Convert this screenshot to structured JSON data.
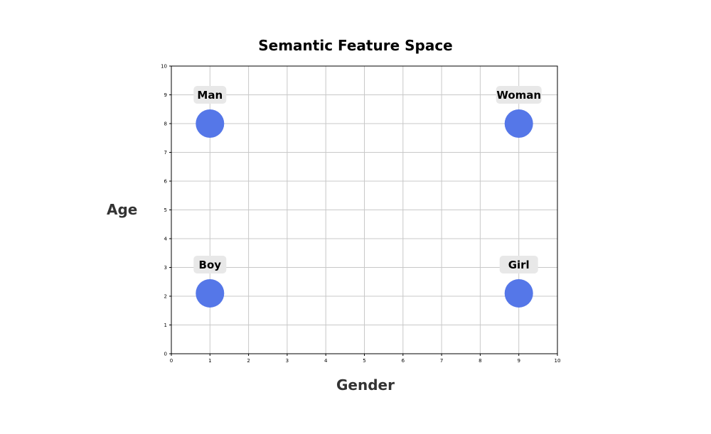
{
  "chart_data": {
    "type": "scatter",
    "title": "Semantic Feature Space",
    "xlabel": "Gender",
    "ylabel": "Age",
    "xlim": [
      0,
      10
    ],
    "ylim": [
      0,
      10
    ],
    "xticks": [
      "0",
      "1",
      "2",
      "3",
      "4",
      "5",
      "6",
      "7",
      "8",
      "9",
      "10"
    ],
    "yticks": [
      "0",
      "1",
      "2",
      "3",
      "4",
      "5",
      "6",
      "7",
      "8",
      "9",
      "10"
    ],
    "grid": true,
    "points": [
      {
        "label": "Man",
        "x": 1,
        "y": 8
      },
      {
        "label": "Woman",
        "x": 9,
        "y": 8
      },
      {
        "label": "Boy",
        "x": 1,
        "y": 2.1
      },
      {
        "label": "Girl",
        "x": 9,
        "y": 2.1
      }
    ],
    "colors": {
      "point": "#5577e8",
      "label_bg": "#e8e8e8",
      "grid": "#c8c8c8"
    }
  }
}
